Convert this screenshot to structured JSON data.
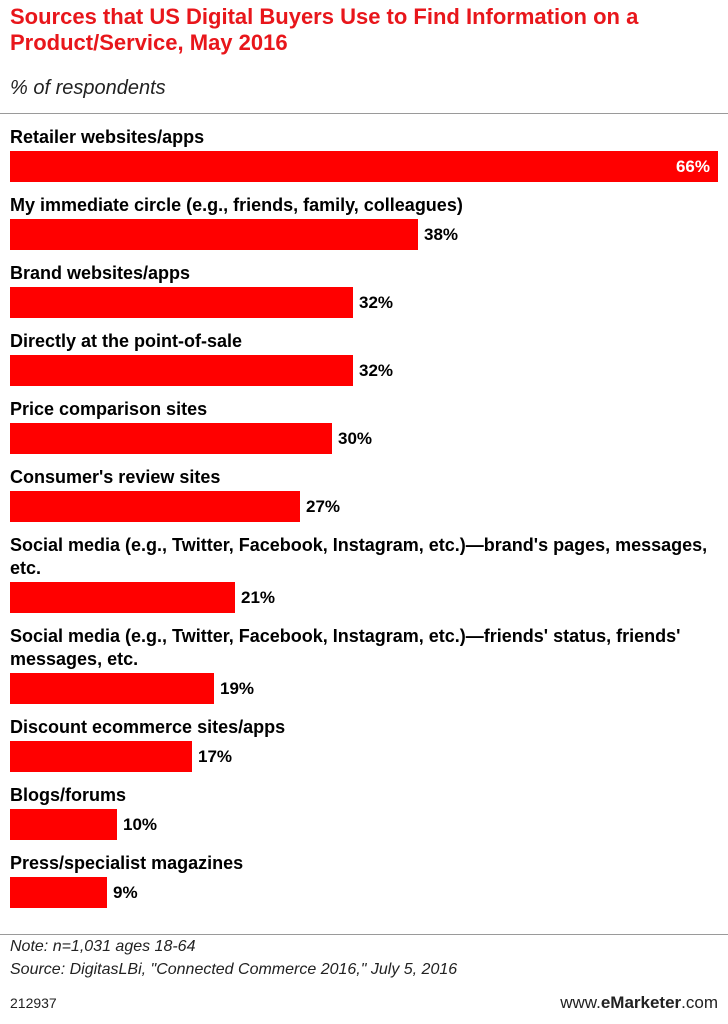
{
  "header": {
    "title": "Sources that US Digital Buyers Use to Find Information on a Product/Service, May 2016",
    "subtitle": "% of respondents"
  },
  "chart_data": {
    "type": "bar",
    "orientation": "horizontal",
    "categories": [
      "Retailer websites/apps",
      "My immediate circle (e.g., friends, family, colleagues)",
      "Brand websites/apps",
      "Directly at the point-of-sale",
      "Price comparison sites",
      "Consumer's review sites",
      "Social media (e.g., Twitter, Facebook, Instagram, etc.)—brand's pages, messages, etc.",
      "Social media (e.g., Twitter, Facebook, Instagram, etc.)—friends' status, friends' messages, etc.",
      "Discount ecommerce sites/apps",
      "Blogs/forums",
      "Press/specialist magazines"
    ],
    "values": [
      66,
      38,
      32,
      32,
      30,
      27,
      21,
      19,
      17,
      10,
      9
    ],
    "value_labels": [
      "66%",
      "38%",
      "32%",
      "32%",
      "30%",
      "27%",
      "21%",
      "19%",
      "17%",
      "10%",
      "9%"
    ],
    "bar_color": "#ff0000",
    "xlim": [
      0,
      66
    ],
    "grid": false,
    "legend": "none"
  },
  "footer": {
    "note": "Note: n=1,031 ages 18-64",
    "source": "Source: DigitasLBi, \"Connected Commerce 2016,\" July 5, 2016",
    "chart_id": "212937",
    "brand_prefix": "www.",
    "brand_name": "eMarketer",
    "brand_suffix": ".com"
  }
}
